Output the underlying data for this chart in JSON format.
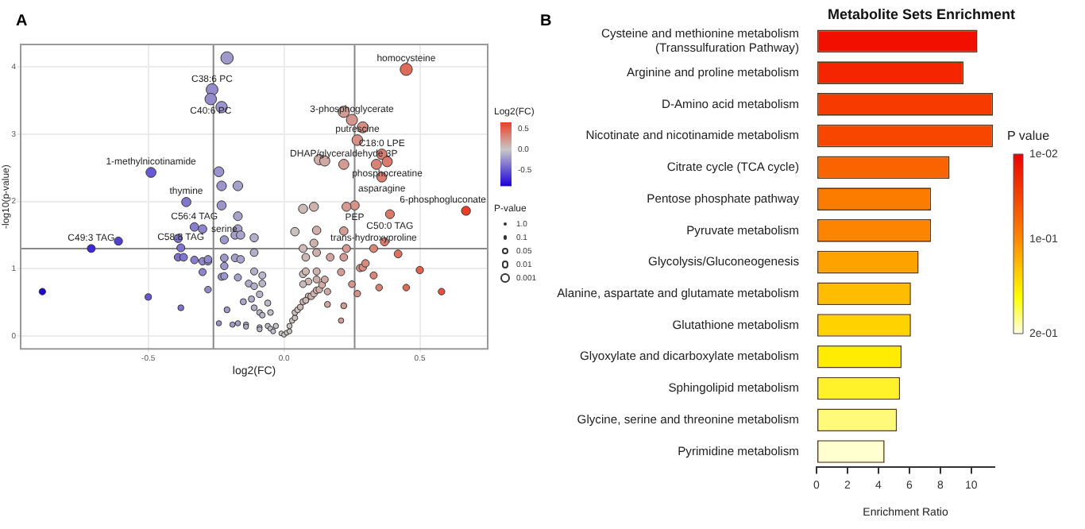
{
  "chart_data": [
    {
      "type": "bubble",
      "annotations": [
        "A",
        "1.0",
        "0.1",
        "0.05",
        "0.01",
        "0.001",
        {
          "text": "homocysteine",
          "x": 0.45,
          "y": 3.96
        },
        {
          "text": "C38:6 PC",
          "x": -0.265,
          "y": 3.66
        },
        {
          "text": "C40:6 PC",
          "x": -0.27,
          "y": 3.52
        },
        {
          "text": "3-phosphoglycerate",
          "x": 0.25,
          "y": 3.21
        },
        {
          "text": "putrescine",
          "x": 0.27,
          "y": 2.91
        },
        {
          "text": "C18:0 LPE",
          "x": 0.36,
          "y": 2.7
        },
        {
          "text": "phosphocreatine",
          "x": 0.38,
          "y": 2.59
        },
        {
          "text": "DHAP/glyceraldehyde 3P",
          "x": 0.22,
          "y": 2.55
        },
        {
          "text": "asparagine",
          "x": 0.36,
          "y": 2.36
        },
        {
          "text": "1-methylnicotinamide",
          "x": -0.49,
          "y": 2.43
        },
        {
          "text": "thymine",
          "x": -0.36,
          "y": 1.99
        },
        {
          "text": "PEP",
          "x": 0.26,
          "y": 1.94
        },
        {
          "text": "6-phosphogluconate",
          "x": 0.67,
          "y": 1.86
        },
        {
          "text": "C50:0 TAG",
          "x": 0.39,
          "y": 1.81
        },
        {
          "text": "C56:4 TAG",
          "x": -0.33,
          "y": 1.62
        },
        {
          "text": "serine",
          "x": -0.22,
          "y": 1.43
        },
        {
          "text": "C58:8 TAG",
          "x": -0.38,
          "y": 1.31
        },
        {
          "text": "C49:3 TAG",
          "x": -0.71,
          "y": 1.3
        },
        {
          "text": "trans-hydroxyproline",
          "x": 0.33,
          "y": 1.3
        }
      ],
      "xlabel": "log2(FC)",
      "ylabel": "-log10(p-value)",
      "x": [
        -0.89,
        -0.71,
        -0.61,
        -0.5,
        -0.49,
        -0.38,
        -0.39,
        -0.38,
        -0.39,
        -0.37,
        -0.36,
        -0.33,
        -0.3,
        -0.33,
        -0.3,
        -0.28,
        -0.3,
        -0.28,
        -0.265,
        -0.27,
        -0.23,
        -0.21,
        -0.24,
        -0.23,
        -0.17,
        -0.23,
        -0.17,
        -0.17,
        -0.18,
        -0.16,
        -0.22,
        -0.11,
        -0.11,
        -0.28,
        -0.22,
        -0.18,
        -0.16,
        -0.22,
        -0.23,
        -0.22,
        -0.17,
        -0.11,
        -0.08,
        -0.08,
        -0.24,
        -0.21,
        -0.19,
        -0.17,
        -0.14,
        -0.14,
        -0.15,
        -0.13,
        -0.11,
        -0.09,
        -0.12,
        -0.11,
        -0.09,
        -0.08,
        -0.06,
        -0.05,
        -0.09,
        -0.09,
        -0.06,
        -0.05,
        -0.03,
        -0.04,
        -0.01,
        0,
        0.01,
        0.02,
        0.02,
        0.03,
        0.04,
        0.04,
        0.05,
        0.06,
        0.07,
        0.09,
        0.08,
        0.1,
        0.11,
        0.12,
        0.13,
        0.14,
        0.15,
        0.16,
        0.12,
        0.07,
        0.09,
        0.07,
        0.16,
        0.22,
        0.21,
        0.17,
        0.08,
        0.07,
        0.12,
        0.12,
        0.08,
        0.25,
        0.27,
        0.28,
        0.29,
        0.3,
        0.33,
        0.35,
        0.42,
        0.45,
        0.5,
        0.58,
        0.45,
        0.22,
        0.25,
        0.29,
        0.27,
        0.36,
        0.13,
        0.15,
        0.22,
        0.34,
        0.38,
        0.36,
        0.26,
        0.23,
        0.11,
        0.07,
        0.67,
        0.39,
        0.12,
        0.22,
        0.04,
        0.11,
        0.37,
        0.33,
        0.23,
        0.22,
        0.21
      ],
      "values": [
        0.66,
        1.3,
        1.41,
        0.58,
        2.43,
        0.42,
        1.45,
        1.31,
        1.17,
        1.17,
        1.99,
        1.62,
        1.59,
        1.13,
        1.11,
        1.11,
        0.95,
        0.69,
        3.66,
        3.52,
        3.4,
        4.13,
        2.44,
        2.23,
        2.23,
        1.94,
        1.78,
        1.59,
        1.5,
        1.5,
        1.43,
        1.46,
        1.24,
        1.14,
        1.16,
        1.16,
        1.14,
        1.04,
        0.88,
        0.89,
        0.87,
        0.96,
        0.9,
        0.78,
        0.19,
        0.39,
        0.17,
        0.19,
        0.17,
        0.14,
        0.51,
        0.78,
        0.74,
        0.62,
        0.55,
        0.42,
        0.35,
        0.31,
        0.49,
        0.35,
        0.13,
        0.1,
        0.15,
        0.11,
        0.15,
        0.07,
        0.04,
        0.02,
        0.05,
        0.07,
        0.15,
        0.23,
        0.27,
        0.35,
        0.39,
        0.43,
        0.51,
        0.59,
        0.53,
        0.59,
        0.63,
        0.68,
        0.69,
        0.76,
        0.84,
        0.66,
        0.84,
        0.92,
        0.81,
        0.77,
        0.47,
        0.45,
        0.23,
        1.17,
        1.17,
        1.3,
        1.24,
        0.96,
        0.96,
        0.77,
        0.63,
        1.01,
        1.02,
        1.08,
        0.9,
        0.72,
        1.22,
        0.72,
        0.98,
        0.66,
        3.96,
        3.33,
        3.21,
        3.1,
        2.91,
        2.7,
        2.62,
        2.6,
        2.55,
        2.55,
        2.59,
        2.36,
        1.94,
        1.92,
        1.92,
        1.89,
        1.86,
        1.81,
        1.57,
        1.56,
        1.55,
        1.38,
        1.4,
        1.3,
        1.3,
        1.17,
        0.95
      ],
      "sizes": [
        0.28,
        0.41,
        0.44,
        0.27,
        0.65,
        0.23,
        0.45,
        0.42,
        0.39,
        0.39,
        0.56,
        0.48,
        0.47,
        0.38,
        0.37,
        0.37,
        0.34,
        0.29,
        0.9,
        0.87,
        0.85,
        1,
        0.65,
        0.61,
        0.61,
        0.55,
        0.51,
        0.47,
        0.46,
        0.46,
        0.44,
        0.45,
        0.4,
        0.38,
        0.39,
        0.39,
        0.38,
        0.36,
        0.33,
        0.33,
        0.33,
        0.34,
        0.33,
        0.31,
        0.18,
        0.23,
        0.18,
        0.18,
        0.18,
        0.17,
        0.25,
        0.31,
        0.3,
        0.27,
        0.26,
        0.23,
        0.22,
        0.21,
        0.25,
        0.22,
        0.17,
        0.17,
        0.18,
        0.17,
        0.18,
        0.16,
        0.15,
        0.15,
        0.16,
        0.16,
        0.18,
        0.19,
        0.2,
        0.22,
        0.23,
        0.23,
        0.25,
        0.27,
        0.25,
        0.27,
        0.28,
        0.29,
        0.29,
        0.3,
        0.32,
        0.28,
        0.32,
        0.34,
        0.31,
        0.3,
        0.24,
        0.24,
        0.19,
        0.39,
        0.39,
        0.41,
        0.4,
        0.34,
        0.34,
        0.3,
        0.28,
        0.35,
        0.36,
        0.37,
        0.33,
        0.29,
        0.4,
        0.29,
        0.35,
        0.28,
        0.96,
        0.83,
        0.81,
        0.79,
        0.75,
        0.7,
        0.69,
        0.68,
        0.67,
        0.67,
        0.68,
        0.63,
        0.55,
        0.54,
        0.54,
        0.54,
        0.53,
        0.52,
        0.47,
        0.47,
        0.47,
        0.43,
        0.43,
        0.41,
        0.41,
        0.39,
        0.34
      ],
      "cvalues": [
        -0.89,
        -0.71,
        -0.61,
        -0.5,
        -0.49,
        -0.38,
        -0.39,
        -0.38,
        -0.39,
        -0.37,
        -0.36,
        -0.33,
        -0.3,
        -0.33,
        -0.3,
        -0.28,
        -0.3,
        -0.28,
        -0.265,
        -0.27,
        -0.23,
        -0.21,
        -0.24,
        -0.23,
        -0.17,
        -0.23,
        -0.17,
        -0.17,
        -0.18,
        -0.16,
        -0.22,
        -0.11,
        -0.11,
        -0.28,
        -0.22,
        -0.18,
        -0.16,
        -0.22,
        -0.23,
        -0.22,
        -0.17,
        -0.11,
        -0.08,
        -0.08,
        -0.24,
        -0.21,
        -0.19,
        -0.17,
        -0.14,
        -0.14,
        -0.15,
        -0.13,
        -0.11,
        -0.09,
        -0.12,
        -0.11,
        -0.09,
        -0.08,
        -0.06,
        -0.05,
        -0.09,
        -0.09,
        -0.06,
        -0.05,
        -0.03,
        -0.04,
        -0.01,
        0,
        0.01,
        0.02,
        0.02,
        0.03,
        0.04,
        0.04,
        0.05,
        0.06,
        0.07,
        0.09,
        0.08,
        0.1,
        0.11,
        0.12,
        0.13,
        0.14,
        0.15,
        0.16,
        0.12,
        0.07,
        0.09,
        0.07,
        0.16,
        0.22,
        0.21,
        0.17,
        0.08,
        0.07,
        0.12,
        0.12,
        0.08,
        0.25,
        0.27,
        0.28,
        0.29,
        0.3,
        0.33,
        0.35,
        0.42,
        0.45,
        0.5,
        0.58,
        0.45,
        0.22,
        0.25,
        0.29,
        0.27,
        0.36,
        0.13,
        0.15,
        0.22,
        0.34,
        0.38,
        0.36,
        0.26,
        0.23,
        0.11,
        0.07,
        0.67,
        0.39,
        0.12,
        0.22,
        0.04,
        0.11,
        0.37,
        0.33,
        0.23,
        0.22,
        0.21
      ],
      "clabel": "Log2(FC)",
      "clim": [
        -0.89,
        0.67
      ],
      "cticks": [
        0.5,
        {
          "value": 0,
          "label": "0.0"
        },
        -0.5
      ],
      "legend_title": "P-value",
      "xlim": [
        -0.97,
        0.75
      ],
      "ylim": [
        -0.19,
        4.33
      ],
      "xticks": [
        -0.5,
        {
          "value": 0,
          "label": "0.0"
        },
        0.5
      ],
      "yticks": [
        0,
        1,
        2,
        3,
        4
      ],
      "grid": true,
      "marker": "circle",
      "ref_lines": [
        {
          "axis": "x",
          "value": -0.26,
          "color": "#888888"
        },
        {
          "axis": "x",
          "value": 0.26,
          "color": "#888888"
        },
        {
          "axis": "y",
          "value": 1.3,
          "color": "#888888"
        }
      ]
    },
    {
      "type": "bar",
      "orientation": "horizontal",
      "title": "Metabolite Sets Enrichment",
      "xlabel": "Enrichment Ratio",
      "annotations": [
        "B"
      ],
      "categories": [
        "Cysteine and methionine metabolism\n(Transsulfuration Pathway)",
        "Arginine and proline metabolism",
        "D-Amino acid metabolism",
        "Nicotinate and nicotinamide metabolism",
        "Citrate cycle (TCA cycle)",
        "Pentose phosphate pathway",
        "Pyruvate metabolism",
        "Glycolysis/Gluconeogenesis",
        "Alanine, aspartate and glutamate metabolism",
        "Glutathione metabolism",
        "Glyoxylate and dicarboxylate metabolism",
        "Sphingolipid metabolism",
        "Glycine, serine and threonine metabolism",
        "Pyrimidine metabolism"
      ],
      "values": [
        10.4,
        9.5,
        11.4,
        11.4,
        8.6,
        7.4,
        7.4,
        6.6,
        6.1,
        6.1,
        5.5,
        5.4,
        5.2,
        4.4
      ],
      "colors": [
        "#f20f00",
        "#f42500",
        "#f63a00",
        "#f84500",
        "#fa6400",
        "#fc7c00",
        "#fd8400",
        "#fea200",
        "#ffbd00",
        "#ffd200",
        "#ffec00",
        "#fff22a",
        "#fffa7a",
        "#ffffd0"
      ],
      "xlim": [
        0,
        11.5
      ],
      "xticks": [
        0,
        2,
        4,
        6,
        8,
        10
      ],
      "clabel": "P value",
      "clim": [
        0.01,
        0.2
      ],
      "cticks": [
        {
          "value": 0.01,
          "label": "1e-02"
        },
        {
          "value": 0.1,
          "label": "1e-01"
        },
        {
          "value": 0.2,
          "label": "2e-01"
        }
      ]
    }
  ]
}
